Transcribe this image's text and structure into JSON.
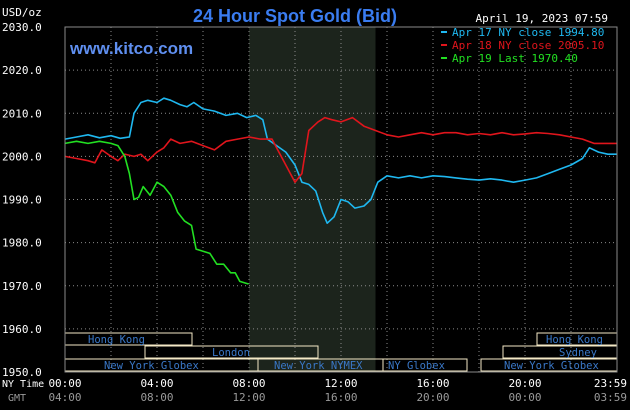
{
  "header": {
    "unit": "USD/oz",
    "title": "24 Hour Spot Gold (Bid)",
    "date": "April 19, 2023 07:59",
    "brand": "www.kitco.com"
  },
  "chart_data": {
    "type": "line",
    "title": "24 Hour Spot Gold (Bid)",
    "ylabel": "USD/oz",
    "ylim": [
      1950,
      2030
    ],
    "xlim": [
      0,
      24
    ],
    "yticks": [
      "2030.0",
      "2020.0",
      "2010.0",
      "2000.0",
      "1990.0",
      "1980.0",
      "1970.0",
      "1960.0",
      "1950.0"
    ],
    "x_axis_label_ny": "NY Time",
    "x_axis_label_gmt": "GMT",
    "xticks_ny": [
      "00:00",
      "04:00",
      "08:00",
      "12:00",
      "16:00",
      "20:00",
      "23:59"
    ],
    "xticks_gmt": [
      "04:00",
      "08:00",
      "12:00",
      "16:00",
      "20:00",
      "00:00",
      "03:59"
    ],
    "shaded_region_hours": [
      8,
      13.5
    ],
    "grid": true,
    "legend_position": "top-right",
    "series": [
      {
        "name": "Apr 17 NY close 1994.80",
        "color": "#1fb8f0",
        "points": [
          [
            0,
            2004
          ],
          [
            0.5,
            2004.5
          ],
          [
            1,
            2005
          ],
          [
            1.5,
            2004.3
          ],
          [
            2,
            2004.8
          ],
          [
            2.4,
            2004.2
          ],
          [
            2.8,
            2004.5
          ],
          [
            3,
            2010
          ],
          [
            3.3,
            2012.5
          ],
          [
            3.6,
            2013
          ],
          [
            4,
            2012.5
          ],
          [
            4.3,
            2013.5
          ],
          [
            4.6,
            2013
          ],
          [
            5,
            2012
          ],
          [
            5.3,
            2011.5
          ],
          [
            5.6,
            2012.5
          ],
          [
            6,
            2011
          ],
          [
            6.5,
            2010.5
          ],
          [
            7,
            2009.5
          ],
          [
            7.5,
            2010
          ],
          [
            7.9,
            2009
          ],
          [
            8.3,
            2009.5
          ],
          [
            8.6,
            2008.5
          ],
          [
            8.8,
            2004
          ],
          [
            9.2,
            2002.5
          ],
          [
            9.6,
            2001
          ],
          [
            10,
            1998
          ],
          [
            10.3,
            1994
          ],
          [
            10.6,
            1993.5
          ],
          [
            10.9,
            1992
          ],
          [
            11.2,
            1987
          ],
          [
            11.4,
            1984.5
          ],
          [
            11.7,
            1986
          ],
          [
            12,
            1990
          ],
          [
            12.3,
            1989.5
          ],
          [
            12.6,
            1988
          ],
          [
            13,
            1988.5
          ],
          [
            13.3,
            1990
          ],
          [
            13.6,
            1994
          ],
          [
            14,
            1995.5
          ],
          [
            14.5,
            1995
          ],
          [
            15,
            1995.5
          ],
          [
            15.5,
            1995
          ],
          [
            16,
            1995.5
          ],
          [
            16.5,
            1995.3
          ],
          [
            17,
            1995
          ],
          [
            17.5,
            1994.7
          ],
          [
            18,
            1994.5
          ],
          [
            18.5,
            1994.8
          ],
          [
            19,
            1994.5
          ],
          [
            19.5,
            1994
          ],
          [
            20,
            1994.5
          ],
          [
            20.5,
            1995
          ],
          [
            21,
            1996
          ],
          [
            21.5,
            1997
          ],
          [
            22,
            1998
          ],
          [
            22.5,
            1999.5
          ],
          [
            22.8,
            2002
          ],
          [
            23.2,
            2001
          ],
          [
            23.6,
            2000.5
          ],
          [
            23.98,
            2000.5
          ]
        ]
      },
      {
        "name": "Apr 18 NY close 2005.10",
        "color": "#e0151c",
        "points": [
          [
            0,
            2000
          ],
          [
            0.5,
            1999.5
          ],
          [
            1,
            1999
          ],
          [
            1.3,
            1998.5
          ],
          [
            1.6,
            2001.5
          ],
          [
            2,
            2000
          ],
          [
            2.3,
            1999
          ],
          [
            2.6,
            2000.5
          ],
          [
            3,
            2000
          ],
          [
            3.3,
            2000.5
          ],
          [
            3.6,
            1999
          ],
          [
            4,
            2001
          ],
          [
            4.3,
            2002
          ],
          [
            4.6,
            2004
          ],
          [
            5,
            2003
          ],
          [
            5.5,
            2003.5
          ],
          [
            6,
            2002.5
          ],
          [
            6.5,
            2001.5
          ],
          [
            7,
            2003.5
          ],
          [
            7.5,
            2004
          ],
          [
            8,
            2004.5
          ],
          [
            8.5,
            2004
          ],
          [
            9,
            2004
          ],
          [
            9.3,
            2001
          ],
          [
            9.6,
            1998
          ],
          [
            10,
            1994
          ],
          [
            10.3,
            1996
          ],
          [
            10.6,
            2006
          ],
          [
            11,
            2008
          ],
          [
            11.3,
            2009
          ],
          [
            11.6,
            2008.5
          ],
          [
            12,
            2008
          ],
          [
            12.5,
            2009
          ],
          [
            13,
            2007
          ],
          [
            13.5,
            2006
          ],
          [
            14,
            2005
          ],
          [
            14.5,
            2004.5
          ],
          [
            15,
            2005
          ],
          [
            15.5,
            2005.5
          ],
          [
            16,
            2005
          ],
          [
            16.5,
            2005.5
          ],
          [
            17,
            2005.5
          ],
          [
            17.5,
            2005
          ],
          [
            18,
            2005.3
          ],
          [
            18.5,
            2005
          ],
          [
            19,
            2005.5
          ],
          [
            19.5,
            2005
          ],
          [
            20,
            2005.2
          ],
          [
            20.5,
            2005.5
          ],
          [
            21,
            2005.3
          ],
          [
            21.5,
            2005
          ],
          [
            22,
            2004.5
          ],
          [
            22.5,
            2004
          ],
          [
            23,
            2003
          ],
          [
            23.5,
            2003
          ],
          [
            23.98,
            2003
          ]
        ]
      },
      {
        "name": "Apr 19 Last 1970.40",
        "color": "#22e022",
        "points": [
          [
            0,
            2003
          ],
          [
            0.5,
            2003.5
          ],
          [
            1,
            2003
          ],
          [
            1.5,
            2003.5
          ],
          [
            2,
            2003
          ],
          [
            2.3,
            2002.5
          ],
          [
            2.6,
            2000
          ],
          [
            2.8,
            1996
          ],
          [
            3,
            1990
          ],
          [
            3.2,
            1990.5
          ],
          [
            3.4,
            1993
          ],
          [
            3.7,
            1991
          ],
          [
            4,
            1994
          ],
          [
            4.3,
            1993
          ],
          [
            4.6,
            1991
          ],
          [
            4.9,
            1987
          ],
          [
            5.2,
            1985
          ],
          [
            5.5,
            1984
          ],
          [
            5.7,
            1978.5
          ],
          [
            6,
            1978
          ],
          [
            6.3,
            1977.5
          ],
          [
            6.6,
            1975
          ],
          [
            6.9,
            1975
          ],
          [
            7.2,
            1973
          ],
          [
            7.4,
            1973
          ],
          [
            7.6,
            1971
          ],
          [
            7.98,
            1970.4
          ]
        ]
      }
    ]
  },
  "sessions": {
    "hong_kong_left": "Hong Kong",
    "london": "London",
    "new_york_globex_left": "New York Globex",
    "new_york_nymex": "New York NYMEX",
    "ny_globex": "NY Globex",
    "hong_kong_right": "Hong Kong",
    "sydney": "Sydney",
    "new_york_globex_right": "New York Globex"
  },
  "colors": {
    "background": "#000000",
    "plot_background": "#000000",
    "shaded": "#1c241c",
    "grid": "#8a8a8a",
    "title": "#3a7cf0",
    "brand": "#5f8ff0",
    "session_box": "#f4e9c6",
    "session_text": "#3a78c8"
  }
}
